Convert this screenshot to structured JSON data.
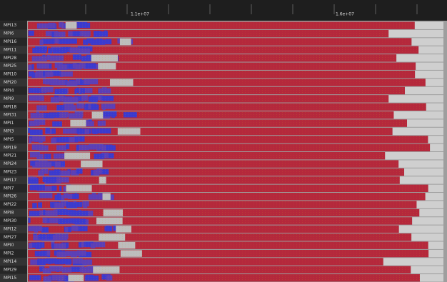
{
  "ruler": {
    "labels": [
      "1.1e+07",
      "1.6e+07"
    ]
  },
  "rows": [
    "MPI13",
    "MPI6",
    "MPI16",
    "MPI11",
    "MPI28",
    "MPI25",
    "MPI10",
    "MPI20",
    "MPI4",
    "MPI9",
    "MPI18",
    "MPI31",
    "MPI1",
    "MPI3",
    "MPI5",
    "MPI19",
    "MPI21",
    "MPI24",
    "MPI23",
    "MPI17",
    "MPI7",
    "MPI26",
    "MPI22",
    "MPI8",
    "MPI30",
    "MPI12",
    "MPI27",
    "MPI0",
    "MPI2",
    "MPI14",
    "MPI29",
    "MPI15"
  ]
}
